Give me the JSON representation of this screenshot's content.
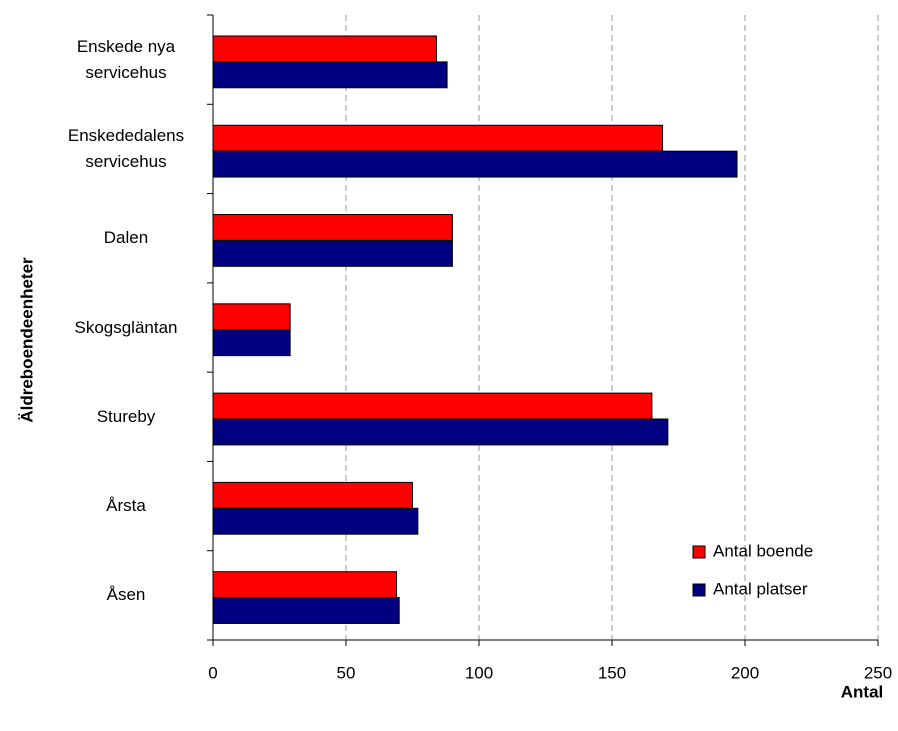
{
  "chart_data": {
    "type": "barh",
    "x_label": "Antal",
    "y_label": "Äldreboendeenheter",
    "categories": [
      "Enskede nya servicehus",
      "Enskededalens servicehus",
      "Dalen",
      "Skogsgläntan",
      "Stureby",
      "Årsta",
      "Åsen"
    ],
    "series": [
      {
        "name": "Antal boende",
        "color": "#ff0000",
        "values": [
          84,
          169,
          90,
          29,
          165,
          75,
          69
        ]
      },
      {
        "name": "Antal platser",
        "color": "#000080",
        "values": [
          88,
          197,
          90,
          29,
          171,
          77,
          70
        ]
      }
    ],
    "xlim": [
      0,
      250
    ],
    "xticks": [
      0,
      50,
      100,
      150,
      200,
      250
    ],
    "grid": true,
    "legend": "lower-right"
  }
}
